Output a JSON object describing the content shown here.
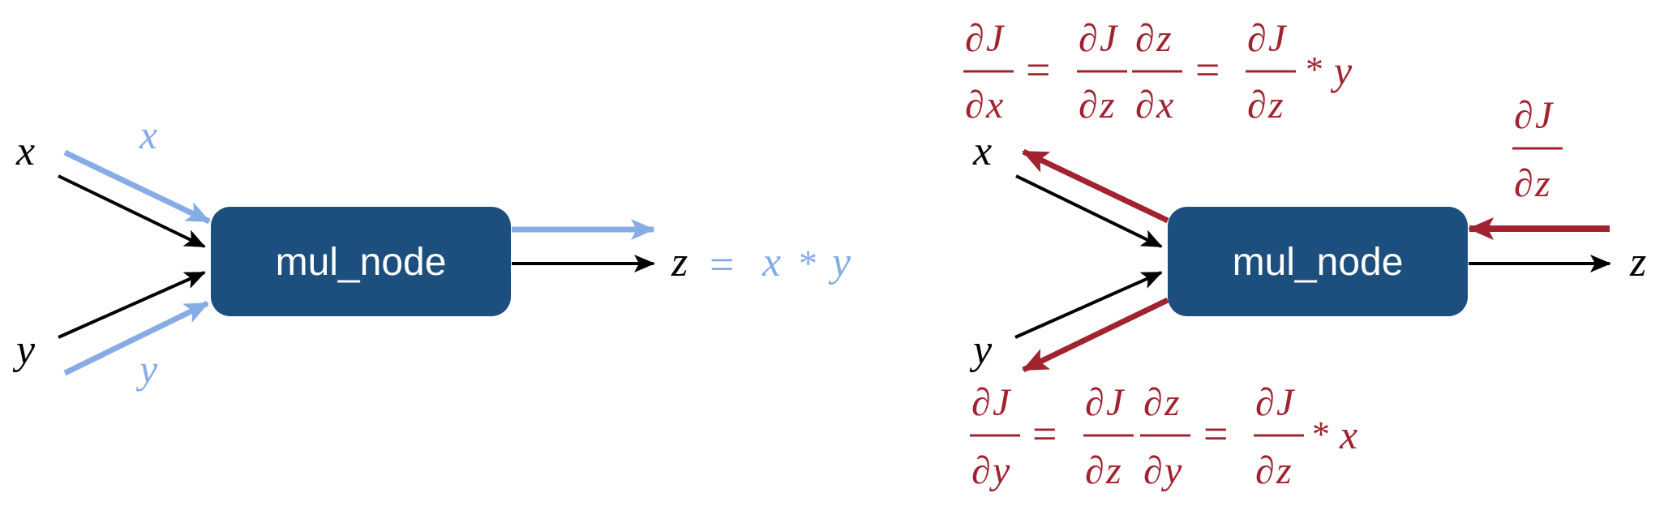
{
  "colors": {
    "node_fill": "#1c4e7e",
    "forward": "#86ace6",
    "backward": "#a0232f",
    "edge": "#000000",
    "node_text": "#ffffff"
  },
  "left_diagram": {
    "node_label": "mul_node",
    "input_x": "x",
    "input_y": "y",
    "output": "z",
    "forward_x": "x",
    "forward_y": "y",
    "forward_eq_sign": "=",
    "forward_eq_a": "x",
    "forward_eq_op": "*",
    "forward_eq_b": "y"
  },
  "right_diagram": {
    "node_label": "mul_node",
    "input_x": "x",
    "input_y": "y",
    "output": "z",
    "d": "∂",
    "J": "J",
    "upstream_den": "z",
    "eq_x": {
      "lhs_den": "x",
      "mid_den_a": "z",
      "mid_num_b": "z",
      "mid_den_b": "x",
      "rhs_den": "z",
      "times": "*",
      "factor": "y",
      "eq": "="
    },
    "eq_y": {
      "lhs_den": "y",
      "mid_den_a": "z",
      "mid_num_b": "z",
      "mid_den_b": "y",
      "rhs_den": "z",
      "times": "*",
      "factor": "x",
      "eq": "="
    }
  }
}
